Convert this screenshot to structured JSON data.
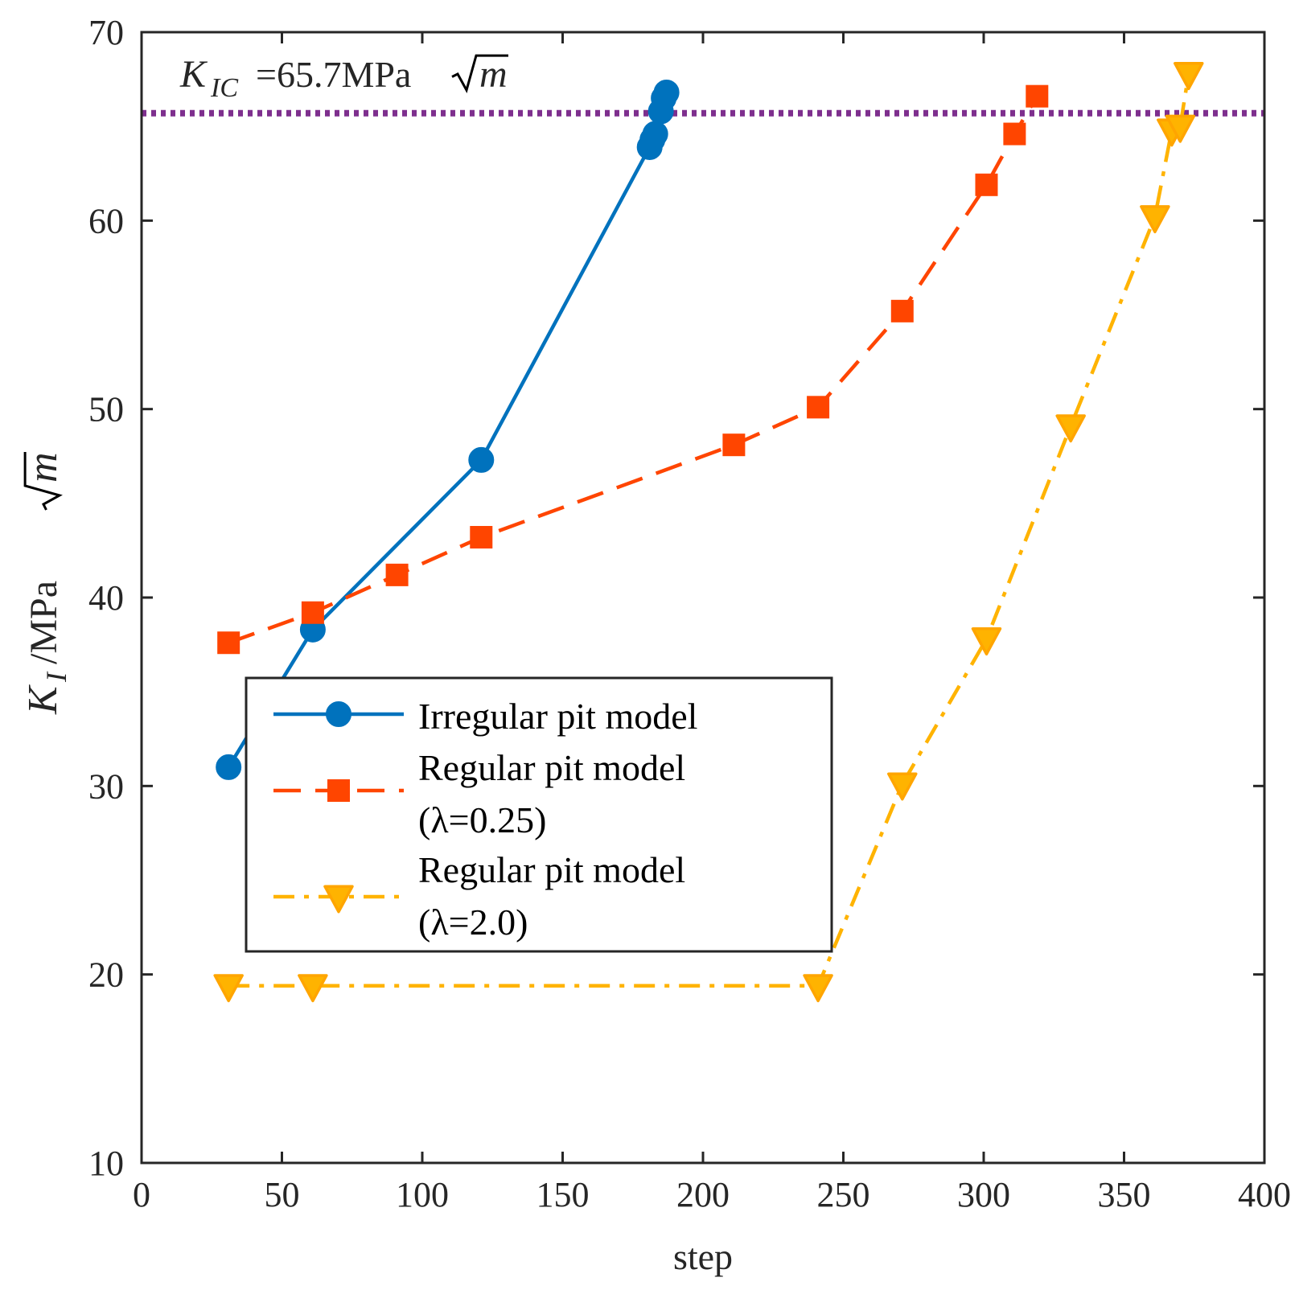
{
  "chart_data": {
    "type": "line",
    "xlabel": "step",
    "ylabel": {
      "symbol": "K",
      "subscript": "I",
      "rest": "/MPa",
      "radicand": "m"
    },
    "xlim": [
      0,
      400
    ],
    "ylim": [
      10,
      70
    ],
    "xticks": [
      0,
      50,
      100,
      150,
      200,
      250,
      300,
      350,
      400
    ],
    "yticks": [
      10,
      20,
      30,
      40,
      50,
      60,
      70
    ],
    "grid": false,
    "legend_position": "lower-left",
    "annotation": {
      "symbol": "K",
      "subscript": "IC",
      "value_text": "=65.7MPa",
      "radicand": "m"
    },
    "reference_line": {
      "y": 65.7,
      "style": "dotted",
      "color": "#7E2F8E"
    },
    "series": [
      {
        "name": "Irregular pit model",
        "color": "#0072BD",
        "line_style": "solid",
        "marker": "circle",
        "points": [
          [
            31,
            31.0
          ],
          [
            61,
            38.3
          ],
          [
            121,
            47.3
          ],
          [
            181,
            63.9
          ],
          [
            182,
            64.3
          ],
          [
            183,
            64.6
          ],
          [
            185,
            65.8
          ],
          [
            186,
            66.5
          ],
          [
            187,
            66.8
          ]
        ]
      },
      {
        "name": "Regular pit model (λ=0.25)",
        "name_lines": [
          "Regular pit model",
          "(λ=0.25)"
        ],
        "color": "#FF4500",
        "line_style": "dashed",
        "marker": "square",
        "points": [
          [
            31,
            37.6
          ],
          [
            61,
            39.2
          ],
          [
            91,
            41.2
          ],
          [
            121,
            43.2
          ],
          [
            211,
            48.1
          ],
          [
            241,
            50.1
          ],
          [
            271,
            55.2
          ],
          [
            301,
            61.9
          ],
          [
            311,
            64.6
          ],
          [
            319,
            66.6
          ]
        ]
      },
      {
        "name": "Regular pit model (λ=2.0)",
        "name_lines": [
          "Regular pit model",
          "(λ=2.0)"
        ],
        "color": "#FFB300",
        "line_style": "dashdot",
        "marker": "triangle-down",
        "points": [
          [
            31,
            19.4
          ],
          [
            61,
            19.4
          ],
          [
            241,
            19.4
          ],
          [
            271,
            30.1
          ],
          [
            301,
            37.8
          ],
          [
            331,
            49.1
          ],
          [
            361,
            60.2
          ],
          [
            367,
            64.8
          ],
          [
            370,
            65.0
          ],
          [
            373,
            67.8
          ]
        ]
      }
    ]
  }
}
